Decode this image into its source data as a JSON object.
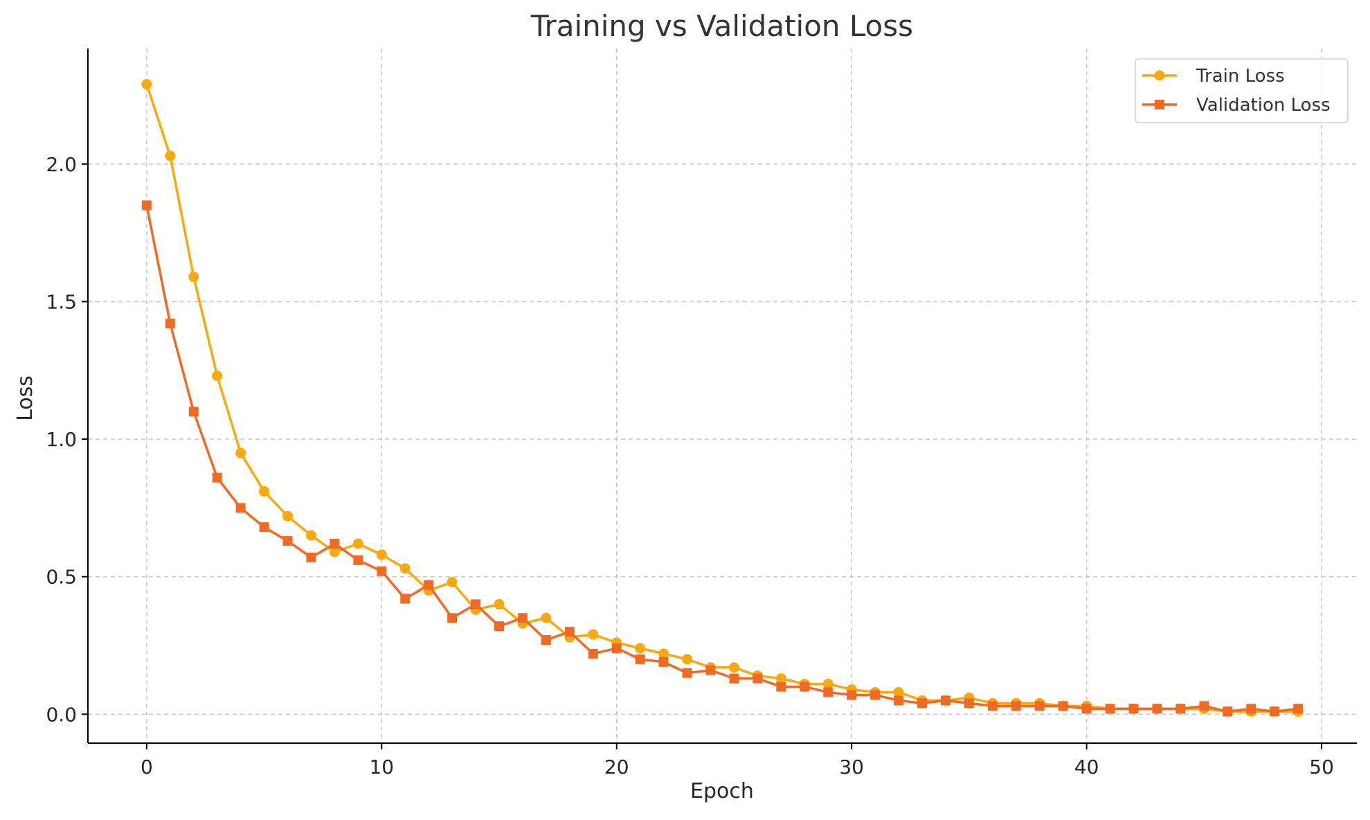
{
  "chart_data": {
    "type": "line",
    "title": "Training vs Validation Loss",
    "xlabel": "Epoch",
    "ylabel": "Loss",
    "xlim": [
      -2.5,
      51.5
    ],
    "ylim": [
      -0.105,
      2.42
    ],
    "xticks": [
      0,
      10,
      20,
      30,
      40,
      50
    ],
    "xtick_labels": [
      "0",
      "10",
      "20",
      "30",
      "40",
      "50"
    ],
    "yticks": [
      0.0,
      0.5,
      1.0,
      1.5,
      2.0
    ],
    "ytick_labels": [
      "0.0",
      "0.5",
      "1.0",
      "1.5",
      "2.0"
    ],
    "grid": true,
    "legend_position": "top-right",
    "x": [
      0,
      1,
      2,
      3,
      4,
      5,
      6,
      7,
      8,
      9,
      10,
      11,
      12,
      13,
      14,
      15,
      16,
      17,
      18,
      19,
      20,
      21,
      22,
      23,
      24,
      25,
      26,
      27,
      28,
      29,
      30,
      31,
      32,
      33,
      34,
      35,
      36,
      37,
      38,
      39,
      40,
      41,
      42,
      43,
      44,
      45,
      46,
      47,
      48,
      49
    ],
    "series": [
      {
        "name": "Train Loss",
        "color": "#F9A90E",
        "marker": "circle",
        "values": [
          2.29,
          2.03,
          1.59,
          1.23,
          0.95,
          0.81,
          0.72,
          0.65,
          0.59,
          0.62,
          0.58,
          0.53,
          0.45,
          0.48,
          0.38,
          0.4,
          0.33,
          0.35,
          0.28,
          0.29,
          0.26,
          0.24,
          0.22,
          0.2,
          0.17,
          0.17,
          0.14,
          0.13,
          0.11,
          0.11,
          0.09,
          0.08,
          0.08,
          0.05,
          0.05,
          0.06,
          0.04,
          0.04,
          0.04,
          0.03,
          0.03,
          0.02,
          0.02,
          0.02,
          0.02,
          0.02,
          0.01,
          0.01,
          0.01,
          0.01
        ]
      },
      {
        "name": "Validation Loss",
        "color": "#F06A24",
        "marker": "square",
        "values": [
          1.85,
          1.42,
          1.1,
          0.86,
          0.75,
          0.68,
          0.63,
          0.57,
          0.62,
          0.56,
          0.52,
          0.42,
          0.47,
          0.35,
          0.4,
          0.32,
          0.35,
          0.27,
          0.3,
          0.22,
          0.24,
          0.2,
          0.19,
          0.15,
          0.16,
          0.13,
          0.13,
          0.1,
          0.1,
          0.08,
          0.07,
          0.07,
          0.05,
          0.04,
          0.05,
          0.04,
          0.03,
          0.03,
          0.03,
          0.03,
          0.02,
          0.02,
          0.02,
          0.02,
          0.02,
          0.03,
          0.01,
          0.02,
          0.01,
          0.02
        ]
      }
    ]
  }
}
